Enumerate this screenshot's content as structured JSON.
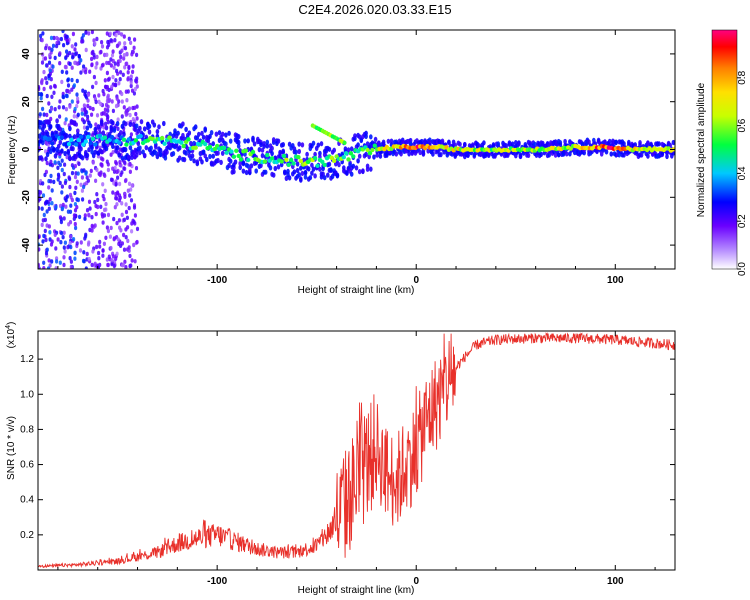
{
  "title": "C2E4.2026.020.03.33.E15",
  "colors": {
    "line": "#e8302a",
    "axis": "#000000",
    "background": "#ffffff"
  },
  "chart_data": [
    {
      "type": "heatmap",
      "name": "spectrogram",
      "xlabel": "Height of straight line (km)",
      "ylabel": "Frequency (Hz)",
      "xlim": [
        -190,
        130
      ],
      "ylim": [
        -50,
        50
      ],
      "x_ticks": [
        -100,
        0,
        100
      ],
      "x_tick_labels": [
        "-100",
        "0",
        "100"
      ],
      "y_ticks": [
        -40,
        -20,
        0,
        20,
        40
      ],
      "y_tick_labels": [
        "-40",
        "-20",
        "0",
        "20",
        "40"
      ],
      "colorbar": {
        "label": "Normalized spectral amplitude",
        "range": [
          0,
          1
        ],
        "ticks": [
          0.0,
          0.2,
          0.4,
          0.6,
          0.8
        ],
        "tick_labels": [
          "0.0",
          "0.2",
          "0.4",
          "0.6",
          "0.8"
        ],
        "colormap": [
          "#ffffff",
          "#6a00ff",
          "#0000ff",
          "#00d7ff",
          "#00ff40",
          "#c8ff00",
          "#ffe000",
          "#ff8000",
          "#ff0000",
          "#ff0080"
        ]
      },
      "ridge": [
        {
          "x": -185,
          "f": 4,
          "amp": 0.25
        },
        {
          "x": -170,
          "f": 4,
          "amp": 0.3
        },
        {
          "x": -160,
          "f": 4,
          "amp": 0.32
        },
        {
          "x": -150,
          "f": 4,
          "amp": 0.35
        },
        {
          "x": -140,
          "f": 4,
          "amp": 0.4
        },
        {
          "x": -130,
          "f": 4,
          "amp": 0.45
        },
        {
          "x": -120,
          "f": 3,
          "amp": 0.42
        },
        {
          "x": -110,
          "f": 2,
          "amp": 0.45
        },
        {
          "x": -100,
          "f": 0,
          "amp": 0.4
        },
        {
          "x": -90,
          "f": -2,
          "amp": 0.42
        },
        {
          "x": -80,
          "f": -3,
          "amp": 0.45
        },
        {
          "x": -70,
          "f": -4,
          "amp": 0.45
        },
        {
          "x": -60,
          "f": -5,
          "amp": 0.5
        },
        {
          "x": -50,
          "f": -5,
          "amp": 0.5
        },
        {
          "x": -40,
          "f": -4,
          "amp": 0.45
        },
        {
          "x": -30,
          "f": -2,
          "amp": 0.45
        },
        {
          "x": -20,
          "f": 0,
          "amp": 0.55
        },
        {
          "x": -10,
          "f": 1,
          "amp": 0.7
        },
        {
          "x": 0,
          "f": 1,
          "amp": 0.85
        },
        {
          "x": 10,
          "f": 1,
          "amp": 0.7
        },
        {
          "x": 20,
          "f": 0,
          "amp": 0.6
        },
        {
          "x": 40,
          "f": 0,
          "amp": 0.55
        },
        {
          "x": 60,
          "f": 0,
          "amp": 0.55
        },
        {
          "x": 80,
          "f": 1,
          "amp": 0.6
        },
        {
          "x": 95,
          "f": 1,
          "amp": 0.9
        },
        {
          "x": 110,
          "f": 0,
          "amp": 0.6
        },
        {
          "x": 125,
          "f": 0,
          "amp": 0.6
        }
      ]
    },
    {
      "type": "line",
      "name": "snr",
      "xlabel": "Height of straight line (km)",
      "ylabel": "SNR (10 * v/v)",
      "y_multiplier_label": "(x10",
      "y_multiplier_exp": "4",
      "xlim": [
        -190,
        130
      ],
      "ylim": [
        0,
        1.36
      ],
      "x_ticks": [
        -100,
        0,
        100
      ],
      "x_tick_labels": [
        "-100",
        "0",
        "100"
      ],
      "y_ticks": [
        0.2,
        0.4,
        0.6,
        0.8,
        1.0,
        1.2
      ],
      "y_tick_labels": [
        "0.2",
        "0.4",
        "0.6",
        "0.8",
        "1.0",
        "1.2"
      ],
      "series": [
        {
          "name": "SNR",
          "x": [
            -190,
            -170,
            -150,
            -130,
            -120,
            -110,
            -100,
            -90,
            -80,
            -70,
            -60,
            -50,
            -45,
            -40,
            -35,
            -30,
            -25,
            -20,
            -15,
            -10,
            -5,
            0,
            5,
            10,
            15,
            20,
            25,
            30,
            40,
            60,
            80,
            100,
            120,
            130
          ],
          "values": [
            0.02,
            0.03,
            0.05,
            0.1,
            0.15,
            0.18,
            0.2,
            0.16,
            0.12,
            0.1,
            0.1,
            0.14,
            0.2,
            0.28,
            0.38,
            0.5,
            0.6,
            0.7,
            0.55,
            0.5,
            0.6,
            0.68,
            0.85,
            0.95,
            1.05,
            1.15,
            1.22,
            1.28,
            1.31,
            1.32,
            1.32,
            1.31,
            1.29,
            1.28
          ]
        }
      ]
    }
  ]
}
